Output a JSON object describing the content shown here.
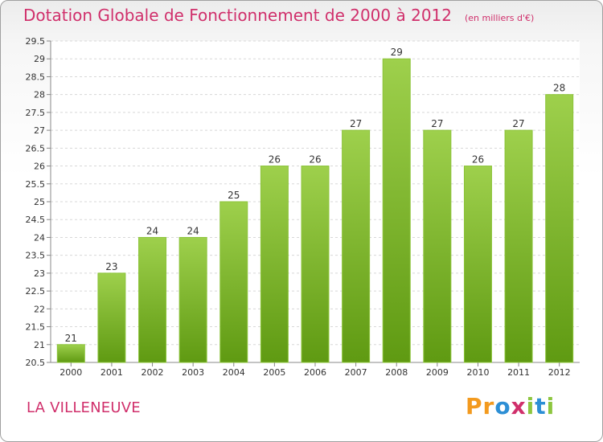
{
  "title": "Dotation Globale de Fonctionnement de 2000 à 2012",
  "unit_note": "(en milliers d'€)",
  "commune": "LA VILLENEUVE",
  "logo_text": "Proxiti",
  "colors": {
    "title": "#d02f6b",
    "bar_top": "#9ed04c",
    "bar_bottom": "#5f9a12",
    "grid": "#d8d8d8",
    "axis_text": "#333333"
  },
  "chart_data": {
    "type": "bar",
    "title": "Dotation Globale de Fonctionnement de 2000 à 2012",
    "subtitle": "(en milliers d'€)",
    "categories": [
      "2000",
      "2001",
      "2002",
      "2003",
      "2004",
      "2005",
      "2006",
      "2007",
      "2008",
      "2009",
      "2010",
      "2011",
      "2012"
    ],
    "values": [
      21,
      23,
      24,
      24,
      25,
      26,
      26,
      27,
      29,
      27,
      26,
      27,
      28
    ],
    "data_labels": [
      "21",
      "23",
      "24",
      "24",
      "25",
      "26",
      "26",
      "27",
      "29",
      "27",
      "26",
      "27",
      "28"
    ],
    "ylim": [
      20.5,
      29.5
    ],
    "yticks": [
      "20.5",
      "21",
      "21.5",
      "22",
      "22.5",
      "23",
      "23.5",
      "24",
      "24.5",
      "25",
      "25.5",
      "26",
      "26.5",
      "27",
      "27.5",
      "28",
      "28.5",
      "29",
      "29.5"
    ],
    "grid": true,
    "xlabel": "",
    "ylabel": ""
  }
}
